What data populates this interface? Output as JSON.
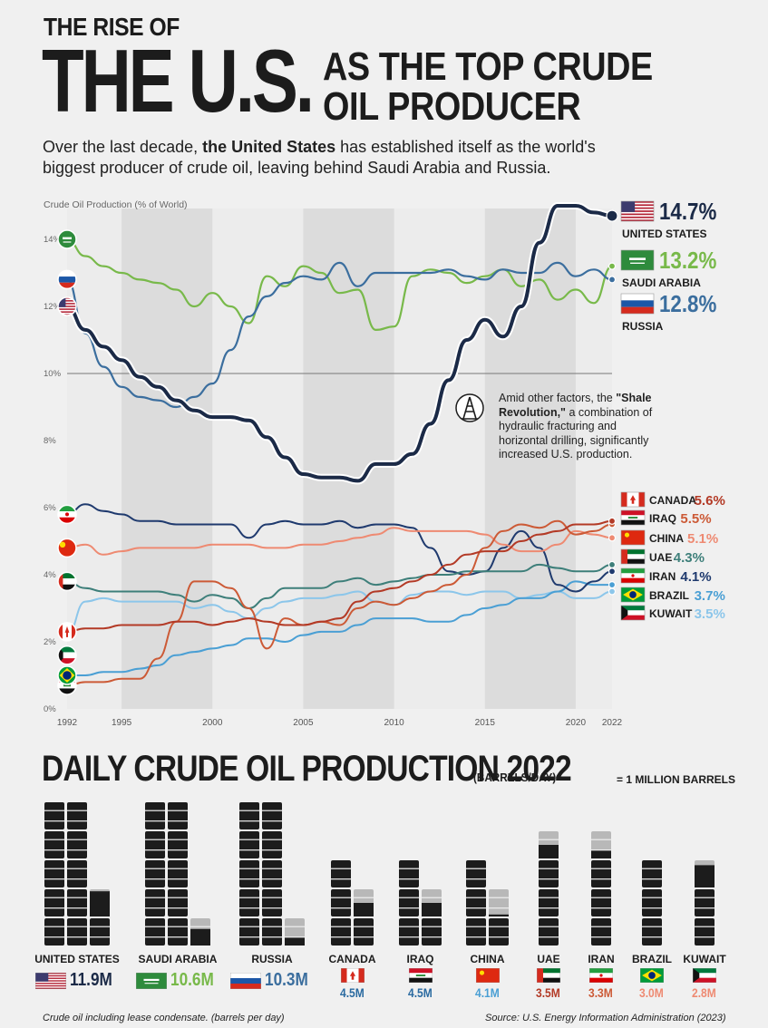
{
  "header": {
    "line1": "THE RISE OF",
    "big": "THE U.S.",
    "side_line1": "AS THE TOP CRUDE",
    "side_line2": "OIL PRODUCER",
    "subtitle_pre": "Over the last decade, ",
    "subtitle_bold": "the United States",
    "subtitle_post": " has established itself as the world's biggest producer of crude oil, leaving behind Saudi Arabia and Russia."
  },
  "annotation": {
    "pre": "Amid other factors, the ",
    "bold": "\"Shale Revolution,\"",
    "post": " a combination of hydraulic fracturing and horizontal drilling, significantly increased U.S. production.",
    "icon": "oil-derrick-icon"
  },
  "chart_data": [
    {
      "type": "line",
      "ylabel": "Crude Oil Production (% of World)",
      "x_ticks": [
        "1992",
        "1995",
        "2000",
        "2005",
        "2010",
        "2015",
        "2020",
        "2022"
      ],
      "y_ticks": [
        "0%",
        "2%",
        "4%",
        "6%",
        "8%",
        "10%",
        "12%",
        "14%"
      ],
      "ylim": [
        0,
        15
      ],
      "xlim": [
        1992,
        2022
      ],
      "shaded_periods": [
        [
          1995,
          2000
        ],
        [
          2005,
          2010
        ],
        [
          2015,
          2020
        ]
      ],
      "x": [
        1992,
        1993,
        1994,
        1995,
        1996,
        1997,
        1998,
        1999,
        2000,
        2001,
        2002,
        2003,
        2004,
        2005,
        2006,
        2007,
        2008,
        2009,
        2010,
        2011,
        2012,
        2013,
        2014,
        2015,
        2016,
        2017,
        2018,
        2019,
        2020,
        2021,
        2022
      ],
      "series": [
        {
          "name": "UNITED STATES",
          "label": "14.7%",
          "color": "#1b2a47",
          "values": [
            12.0,
            11.3,
            10.8,
            10.4,
            9.9,
            9.6,
            9.2,
            8.9,
            8.7,
            8.7,
            8.6,
            8.1,
            7.5,
            7.0,
            6.9,
            6.9,
            6.8,
            7.3,
            7.3,
            7.6,
            8.5,
            9.8,
            11.0,
            11.6,
            11.1,
            12.0,
            13.9,
            15.0,
            15.0,
            14.8,
            14.7
          ]
        },
        {
          "name": "SAUDI ARABIA",
          "label": "13.2%",
          "color": "#78b94a",
          "values": [
            14.0,
            13.5,
            13.2,
            13.0,
            12.8,
            12.7,
            12.5,
            12.0,
            12.4,
            12.0,
            11.5,
            12.9,
            12.6,
            13.2,
            13.0,
            12.4,
            12.5,
            11.3,
            11.4,
            12.9,
            13.1,
            13.0,
            12.7,
            12.9,
            13.1,
            12.6,
            12.8,
            12.2,
            12.5,
            12.1,
            13.2
          ]
        },
        {
          "name": "RUSSIA",
          "label": "12.8%",
          "color": "#3b6e9e",
          "values": [
            12.8,
            11.2,
            10.2,
            9.6,
            9.3,
            9.2,
            9.0,
            9.3,
            9.7,
            10.7,
            11.7,
            12.3,
            12.7,
            12.9,
            12.8,
            13.3,
            12.6,
            13.0,
            13.0,
            13.0,
            13.0,
            13.1,
            12.9,
            12.8,
            13.1,
            13.0,
            13.0,
            13.3,
            12.9,
            13.1,
            12.8
          ]
        },
        {
          "name": "CANADA",
          "label": "5.6%",
          "color": "#b33a26",
          "values": [
            2.3,
            2.4,
            2.4,
            2.5,
            2.5,
            2.5,
            2.6,
            2.6,
            2.5,
            2.6,
            2.7,
            2.6,
            2.5,
            2.5,
            2.6,
            2.7,
            3.2,
            3.5,
            3.6,
            3.8,
            4.0,
            4.3,
            4.6,
            4.7,
            4.7,
            5.0,
            5.2,
            5.3,
            5.5,
            5.5,
            5.6
          ]
        },
        {
          "name": "IRAQ",
          "label": "5.5%",
          "color": "#cc5a36",
          "values": [
            0.7,
            0.8,
            0.8,
            0.9,
            0.9,
            1.5,
            2.6,
            3.8,
            3.8,
            3.6,
            3.0,
            1.8,
            2.7,
            2.5,
            2.6,
            2.5,
            3.0,
            3.2,
            3.1,
            3.3,
            3.5,
            3.7,
            4.0,
            4.8,
            5.3,
            5.5,
            5.4,
            5.6,
            5.2,
            5.3,
            5.5
          ]
        },
        {
          "name": "CHINA",
          "label": "5.1%",
          "color": "#ee8a72",
          "values": [
            4.8,
            4.9,
            4.6,
            4.7,
            4.8,
            4.8,
            4.8,
            4.8,
            4.9,
            4.9,
            4.9,
            4.8,
            4.8,
            4.9,
            4.9,
            5.0,
            5.1,
            5.2,
            5.4,
            5.3,
            5.3,
            5.3,
            5.3,
            5.2,
            4.9,
            4.7,
            4.7,
            4.9,
            5.3,
            5.2,
            5.1
          ]
        },
        {
          "name": "UAE",
          "label": "4.3%",
          "color": "#3e7f7a",
          "values": [
            3.8,
            3.6,
            3.5,
            3.5,
            3.5,
            3.5,
            3.4,
            3.2,
            3.4,
            3.3,
            3.0,
            3.3,
            3.6,
            3.6,
            3.6,
            3.8,
            3.9,
            3.7,
            3.8,
            3.9,
            4.0,
            4.0,
            4.1,
            4.1,
            4.1,
            4.1,
            4.3,
            4.2,
            4.1,
            4.1,
            4.3
          ]
        },
        {
          "name": "IRAN",
          "label": "4.1%",
          "color": "#1f3a6e",
          "values": [
            5.8,
            6.1,
            5.9,
            5.8,
            5.6,
            5.6,
            5.5,
            5.5,
            5.5,
            5.5,
            5.1,
            5.5,
            5.6,
            5.5,
            5.5,
            5.6,
            5.4,
            5.5,
            5.5,
            5.4,
            4.8,
            4.1,
            4.0,
            4.1,
            4.8,
            5.3,
            4.8,
            3.7,
            3.5,
            3.8,
            4.1
          ]
        },
        {
          "name": "BRAZIL",
          "label": "3.7%",
          "color": "#4a9fd4",
          "values": [
            1.0,
            1.0,
            1.1,
            1.1,
            1.2,
            1.3,
            1.6,
            1.7,
            1.8,
            1.9,
            2.1,
            2.1,
            2.0,
            2.2,
            2.3,
            2.3,
            2.5,
            2.7,
            2.7,
            2.7,
            2.6,
            2.6,
            2.8,
            3.0,
            3.1,
            3.3,
            3.3,
            3.5,
            3.8,
            3.7,
            3.7
          ]
        },
        {
          "name": "KUWAIT",
          "label": "3.5%",
          "color": "#8cc6ea",
          "values": [
            2.2,
            3.2,
            3.3,
            3.2,
            3.2,
            3.2,
            3.2,
            3.0,
            3.1,
            2.9,
            2.7,
            3.0,
            3.2,
            3.3,
            3.3,
            3.4,
            3.5,
            3.2,
            3.1,
            3.4,
            3.5,
            3.5,
            3.4,
            3.5,
            3.5,
            3.3,
            3.4,
            3.5,
            3.3,
            3.3,
            3.5
          ]
        }
      ]
    },
    {
      "type": "bar",
      "title": "DAILY CRUDE OIL PRODUCTION 2022",
      "unit": "(BARRELS/DAY)",
      "legend": "= 1 MILLION BARRELS",
      "categories": [
        "UNITED STATES",
        "SAUDI ARABIA",
        "RUSSIA",
        "CANADA",
        "IRAQ",
        "CHINA",
        "UAE",
        "IRAN",
        "BRAZIL",
        "KUWAIT"
      ],
      "values": [
        11.9,
        10.6,
        10.3,
        4.5,
        4.5,
        4.1,
        3.5,
        3.3,
        3.0,
        2.8
      ],
      "labels": [
        "11.9M",
        "10.6M",
        "10.3M",
        "4.5M",
        "4.5M",
        "4.1M",
        "3.5M",
        "3.3M",
        "3.0M",
        "2.8M"
      ],
      "label_colors": [
        "#1b2a47",
        "#78b94a",
        "#3b6e9e",
        "#2a6aa0",
        "#2a6aa0",
        "#4a9fd4",
        "#b33a26",
        "#cc5a36",
        "#ee8a72",
        "#ee8a72"
      ],
      "flags": [
        "us-flag",
        "saudi-flag",
        "russia-flag",
        "canada-flag",
        "iraq-flag",
        "china-flag",
        "uae-flag",
        "iran-flag",
        "brazil-flag",
        "kuwait-flag"
      ]
    }
  ],
  "footer": {
    "footnote": "Crude oil including lease condensate. (barrels per day)",
    "source": "Source: U.S. Energy Information Administration (2023)"
  }
}
